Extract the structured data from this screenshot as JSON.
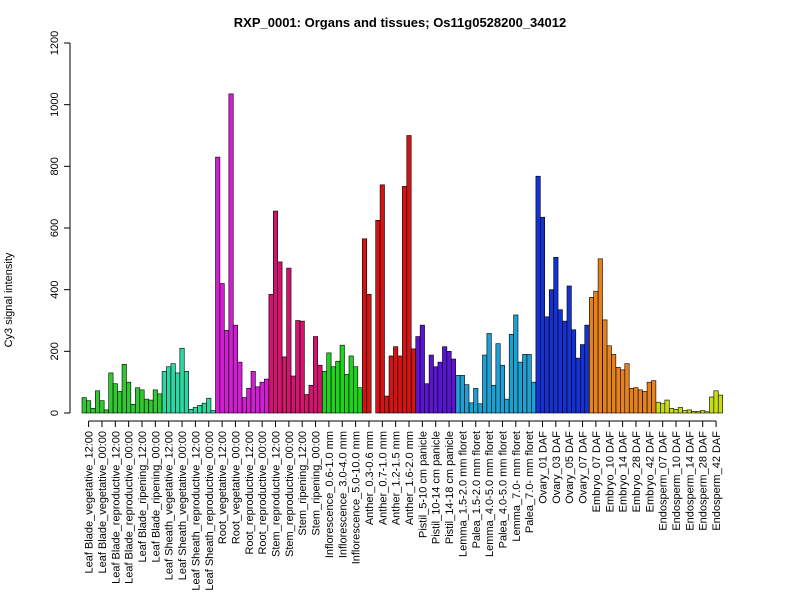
{
  "chart_data": {
    "type": "bar",
    "title": "RXP_0001: Organs and tissues; Os11g0528200_34012",
    "ylabel": "Cy3 signal intensity",
    "xlabel": "",
    "ylim": [
      0,
      1200
    ],
    "yticks": [
      0,
      200,
      400,
      600,
      800,
      1000,
      1200
    ],
    "grid": false,
    "legend": "none",
    "categories": [
      "Leaf Blade_vegetative_12:00",
      "Leaf Blade_vegetative_00:00",
      "Leaf Blade_reproductive_12:00",
      "Leaf Blade_reproductive_00:00",
      "Leaf Blade_ripening_12:00",
      "Leaf Blade_ripening_00:00",
      "Leaf Sheath_vegetative_12:00",
      "Leaf Sheath_vegetative_00:00",
      "Leaf Sheath_reproductive_12:00",
      "Leaf Sheath_reproductive_00:00",
      "Root_vegetative_12:00",
      "Root_vegetative_00:00",
      "Root_reproductive_12:00",
      "Root_reproductive_00:00",
      "Stem_reproductive_12:00",
      "Stem_reproductive_00:00",
      "Stem_ripening_12:00",
      "Stem_ripening_00:00",
      "Inflorescence_0.6-1.0 mm",
      "Inflorescence_3.0-4.0 mm",
      "Inflorescence_5.0-10.0 mm",
      "Anther_0.3-0.6 mm",
      "Anther_0.7-1.0 mm",
      "Anther_1.2-1.5 mm",
      "Anther_1.6-2.0 mm",
      "Pistil_5-10 cm panicle",
      "Pistil_10-14 cm panicle",
      "Pistil_14-18 cm panicle",
      "Lemma_1.5-2.0 mm floret",
      "Palea_1.5-2.0 mm floret",
      "Lemma_4.0-5.0 mm floret",
      "Palea_4.0-5.0 mm floret",
      "Lemma_7.0- mm floret",
      "Palea_7.0- mm floret",
      "Ovary_01 DAF",
      "Ovary_03 DAF",
      "Ovary_05 DAF",
      "Ovary_07 DAF",
      "Embryo_07 DAF",
      "Embryo_10 DAF",
      "Embryo_14 DAF",
      "Embryo_28 DAF",
      "Embryo_42 DAF",
      "Endosperm_07 DAF",
      "Endosperm_10 DAF",
      "Endosperm_14 DAF",
      "Endosperm_28 DAF",
      "Endosperm_42 DAF"
    ],
    "colors": [
      "#32c832",
      "#32c832",
      "#32c832",
      "#32c832",
      "#32c832",
      "#32c832",
      "#2ed6a0",
      "#2ed6a0",
      "#2ed6a0",
      "#2ed6a0",
      "#d21ed2",
      "#d21ed2",
      "#d21ed2",
      "#d21ed2",
      "#d2146e",
      "#d2146e",
      "#d2146e",
      "#d2146e",
      "#1ed21e",
      "#1ed21e",
      "#1ed21e",
      "#d21414",
      "#d21414",
      "#d21414",
      "#d21414",
      "#5a14d2",
      "#5a14d2",
      "#5a14d2",
      "#1ea0d2",
      "#1ea0d2",
      "#1ea0d2",
      "#1ea0d2",
      "#1ea0d2",
      "#1ea0d2",
      "#1432d2",
      "#1432d2",
      "#1432d2",
      "#1432d2",
      "#e6821e",
      "#e6821e",
      "#e6821e",
      "#e6821e",
      "#e6821e",
      "#c8dc14",
      "#c8dc14",
      "#c8dc14",
      "#c8dc14",
      "#c8dc14"
    ],
    "values": [
      [
        50,
        40,
        15
      ],
      [
        72,
        40,
        10
      ],
      [
        130,
        95,
        70
      ],
      [
        158,
        100,
        28
      ],
      [
        82,
        75,
        45
      ],
      [
        42,
        75,
        62
      ],
      [
        135,
        150,
        160
      ],
      [
        130,
        210,
        135
      ],
      [
        12,
        18,
        25
      ],
      [
        32,
        48,
        8
      ],
      [
        830,
        420,
        268
      ],
      [
        1035,
        285,
        165
      ],
      [
        50,
        80,
        135
      ],
      [
        85,
        100,
        110
      ],
      [
        385,
        655,
        490
      ],
      [
        182,
        470,
        120
      ],
      [
        300,
        298,
        60
      ],
      [
        90,
        248,
        155
      ],
      [
        135,
        195,
        150
      ],
      [
        168,
        220,
        125
      ],
      [
        185,
        150,
        82
      ],
      [
        565,
        385,
        0
      ],
      [
        625,
        740,
        55
      ],
      [
        185,
        215,
        185
      ],
      [
        735,
        900,
        208
      ],
      [
        248,
        285,
        95
      ],
      [
        188,
        150,
        165
      ],
      [
        215,
        200,
        175
      ],
      [
        122,
        122,
        92
      ],
      [
        33,
        80,
        30
      ],
      [
        188,
        258,
        90
      ],
      [
        225,
        155,
        45
      ],
      [
        255,
        318,
        165
      ],
      [
        190,
        190,
        100
      ],
      [
        768,
        635,
        312
      ],
      [
        400,
        505,
        335
      ],
      [
        298,
        412,
        270
      ],
      [
        178,
        222,
        285
      ],
      [
        375,
        395,
        500
      ],
      [
        302,
        218,
        190
      ],
      [
        148,
        140,
        160
      ],
      [
        80,
        82,
        75
      ],
      [
        70,
        100,
        105
      ],
      [
        35,
        30,
        42
      ],
      [
        15,
        12,
        18
      ],
      [
        8,
        10,
        5
      ],
      [
        5,
        8,
        4
      ],
      [
        52,
        72,
        58
      ]
    ]
  }
}
